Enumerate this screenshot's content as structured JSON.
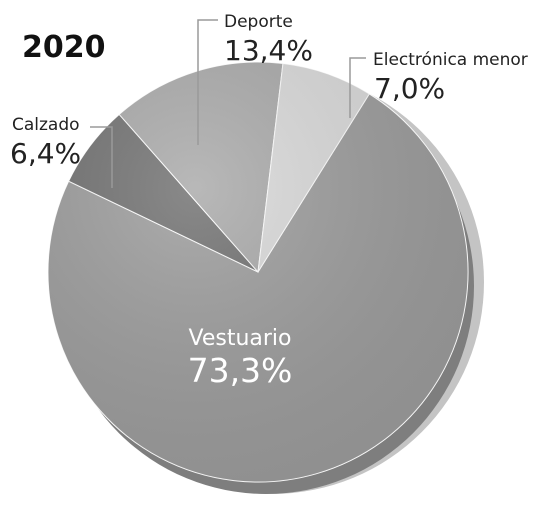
{
  "chart_data": {
    "type": "pie",
    "title": "2020",
    "categories": [
      "Vestuario",
      "Calzado",
      "Deporte",
      "Electrónica menor"
    ],
    "values": [
      73.3,
      6.4,
      13.4,
      7.0
    ],
    "value_labels": [
      "73,3%",
      "6,4%",
      "13,4%",
      "7,0%"
    ],
    "colors": [
      "#9c9c9c",
      "#707070",
      "#a9a9a9",
      "#d9d9d9"
    ]
  }
}
